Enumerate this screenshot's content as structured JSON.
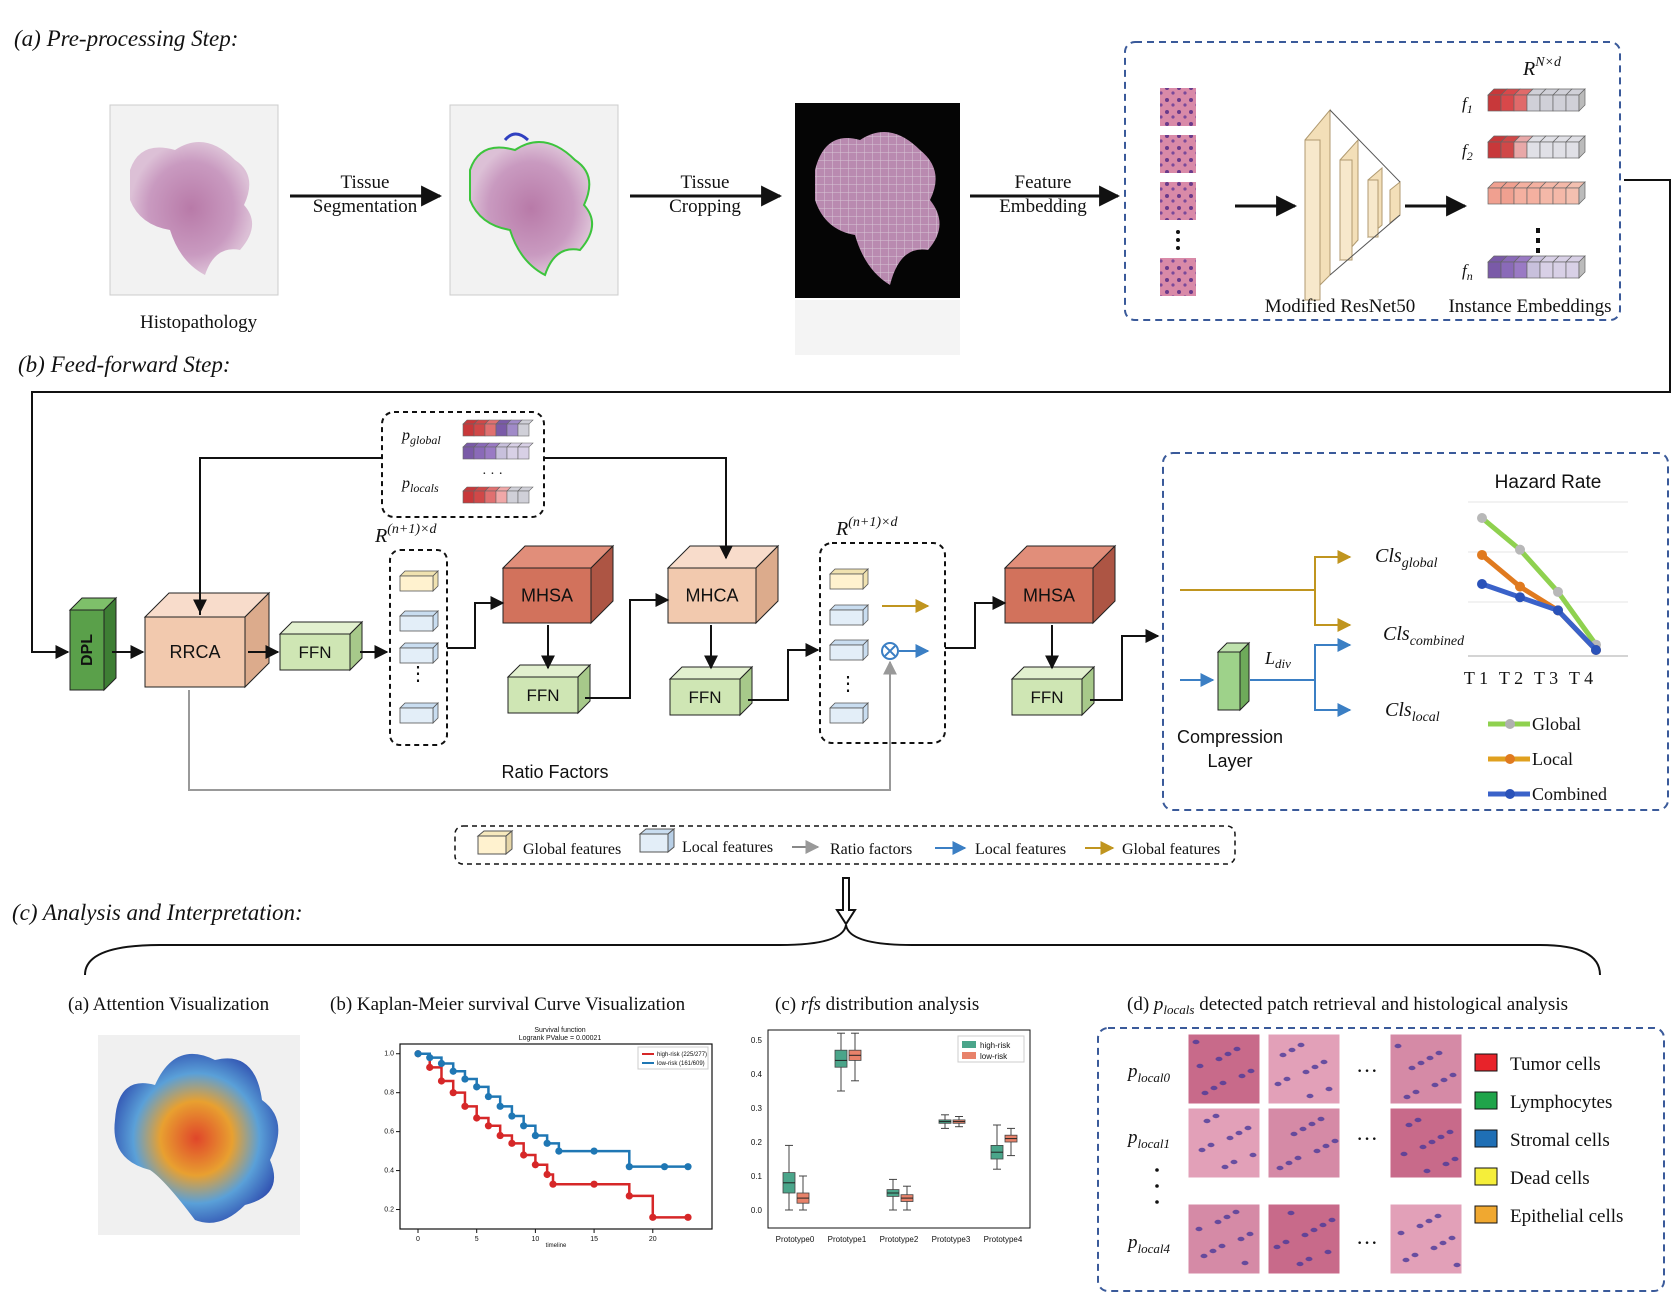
{
  "sections": {
    "preprocessing": "(a) Pre-processing Step:",
    "feedforward": "(b) Feed-forward Step:",
    "analysis": "(c) Analysis and Interpretation:"
  },
  "preprocessing": {
    "wsi_label": "Histopathology",
    "arrow1": [
      "Tissue",
      "Segmentation"
    ],
    "arrow2": [
      "Tissue",
      "Cropping"
    ],
    "arrow3": [
      "Feature",
      "Embedding"
    ],
    "resnet_label": "Modified ResNet50",
    "embed_label": "Instance Embeddings",
    "dim_label": "R",
    "dim_sup": "N×d",
    "rows": [
      "f1",
      "f2",
      "fn"
    ]
  },
  "feedforward": {
    "dpl": "DPL",
    "rrca": "RRCA",
    "ffn": "FFN",
    "mhsa": "MHSA",
    "mhca": "MHCA",
    "p_global": "p",
    "p_global_sub": "global",
    "p_locals": "p",
    "p_locals_sub": "locals",
    "dots": "· · ·",
    "tokens_label": "R",
    "tokens_sup": "(n+1)×d",
    "ratio_factors": "Ratio Factors",
    "cls_global": "Cls",
    "cls_global_sub": "global",
    "cls_combined": "Cls",
    "cls_combined_sub": "combined",
    "cls_local": "Cls",
    "cls_local_sub": "local",
    "l_div": "L",
    "l_div_sub": "div",
    "compression": [
      "Compression",
      "Layer"
    ]
  },
  "hazard_chart": {
    "title": "Hazard Rate",
    "x_labels": [
      "T 1",
      "T 2",
      "T 3",
      "T 4"
    ],
    "legend": [
      "Global",
      "Local",
      "Combined"
    ]
  },
  "legend": {
    "global_features": "Global features",
    "local_features": "Local features",
    "ratio_factors": "Ratio factors",
    "local_arrow": "Local features",
    "global_arrow": "Global features"
  },
  "panels": {
    "a": "(a) Attention Visualization",
    "b": "(b) Kaplan-Meier survival Curve Visualization",
    "c_prefix": "(c) ",
    "c_var": "rfs",
    "c_suffix": " distribution analysis",
    "d_prefix": "(d) ",
    "d_var": "p",
    "d_sub": "locals",
    "d_suffix": " detected patch retrieval and histological analysis"
  },
  "km_plot": {
    "title": "Survival function",
    "subtitle": "Logrank PValue = 0.00021",
    "legend": [
      "high-risk (225/277)",
      "low-risk (161/609)"
    ],
    "xlabel": "timeline",
    "x_ticks": [
      "0",
      "5",
      "10",
      "15",
      "20"
    ],
    "y_ticks": [
      "0.2",
      "0.4",
      "0.6",
      "0.8",
      "1.0"
    ]
  },
  "box_plot": {
    "legend": [
      "high-risk",
      "low-risk"
    ],
    "categories": [
      "Prototype0",
      "Prototype1",
      "Prototype2",
      "Prototype3",
      "Prototype4"
    ],
    "y_ticks": [
      "0.0",
      "0.1",
      "0.2",
      "0.3",
      "0.4",
      "0.5"
    ]
  },
  "patches": {
    "row_labels": [
      "p",
      "p",
      "p"
    ],
    "row_subs": [
      "local0",
      "local1",
      "local4"
    ],
    "ellipsis": "···"
  },
  "cell_legend": [
    {
      "label": "Tumor cells",
      "color": "#e8232a"
    },
    {
      "label": "Lymphocytes",
      "color": "#1fa44a"
    },
    {
      "label": "Stromal cells",
      "color": "#1f6fb5"
    },
    {
      "label": "Dead cells",
      "color": "#f5ee3a"
    },
    {
      "label": "Epithelial cells",
      "color": "#f0a830"
    }
  ],
  "chart_data": [
    {
      "type": "line",
      "title": "Hazard Rate",
      "categories": [
        "T 1",
        "T 2",
        "T 3",
        "T 4"
      ],
      "series": [
        {
          "name": "Global",
          "values": [
            1.0,
            0.76,
            0.44,
            0.04
          ],
          "color": "#8fd14f"
        },
        {
          "name": "Local",
          "values": [
            0.72,
            0.48,
            0.3,
            0.0
          ],
          "color": "#e07a1f"
        },
        {
          "name": "Combined",
          "values": [
            0.5,
            0.4,
            0.3,
            0.0
          ],
          "color": "#3a62c9"
        }
      ]
    },
    {
      "type": "line",
      "title": "Survival function",
      "xlabel": "timeline",
      "xlim": [
        0,
        24
      ],
      "ylim": [
        0.1,
        1.05
      ],
      "series": [
        {
          "name": "high-risk (225/277)",
          "color": "#d62728",
          "x": [
            0,
            1,
            2,
            3,
            4,
            5,
            6,
            7,
            8,
            9,
            10,
            11,
            11.5,
            15,
            18,
            20,
            23
          ],
          "y": [
            1.0,
            0.93,
            0.86,
            0.8,
            0.73,
            0.67,
            0.63,
            0.58,
            0.54,
            0.48,
            0.43,
            0.38,
            0.33,
            0.33,
            0.27,
            0.16,
            0.16
          ]
        },
        {
          "name": "low-risk (161/609)",
          "color": "#1f77b4",
          "x": [
            0,
            1,
            2,
            3,
            4,
            5,
            6,
            7,
            8,
            9,
            10,
            11,
            12,
            15,
            18,
            21,
            23
          ],
          "y": [
            1.0,
            0.98,
            0.95,
            0.91,
            0.87,
            0.83,
            0.78,
            0.73,
            0.68,
            0.63,
            0.58,
            0.54,
            0.5,
            0.5,
            0.42,
            0.42,
            0.42
          ]
        }
      ]
    },
    {
      "type": "box",
      "categories": [
        "Prototype0",
        "Prototype1",
        "Prototype2",
        "Prototype3",
        "Prototype4"
      ],
      "ylim": [
        0.0,
        0.52
      ],
      "series": [
        {
          "name": "high-risk",
          "color": "#4aa58a",
          "boxes": [
            [
              0.0,
              0.05,
              0.08,
              0.11,
              0.19
            ],
            [
              0.35,
              0.42,
              0.44,
              0.47,
              0.52
            ],
            [
              0.0,
              0.04,
              0.05,
              0.06,
              0.09
            ],
            [
              0.24,
              0.255,
              0.26,
              0.265,
              0.28
            ],
            [
              0.12,
              0.15,
              0.17,
              0.19,
              0.25
            ]
          ]
        },
        {
          "name": "low-risk",
          "color": "#e8826a",
          "boxes": [
            [
              0.0,
              0.02,
              0.035,
              0.05,
              0.1
            ],
            [
              0.38,
              0.44,
              0.455,
              0.47,
              0.52
            ],
            [
              0.0,
              0.025,
              0.035,
              0.045,
              0.07
            ],
            [
              0.245,
              0.255,
              0.26,
              0.265,
              0.275
            ],
            [
              0.16,
              0.2,
              0.21,
              0.22,
              0.24
            ]
          ]
        }
      ]
    }
  ]
}
